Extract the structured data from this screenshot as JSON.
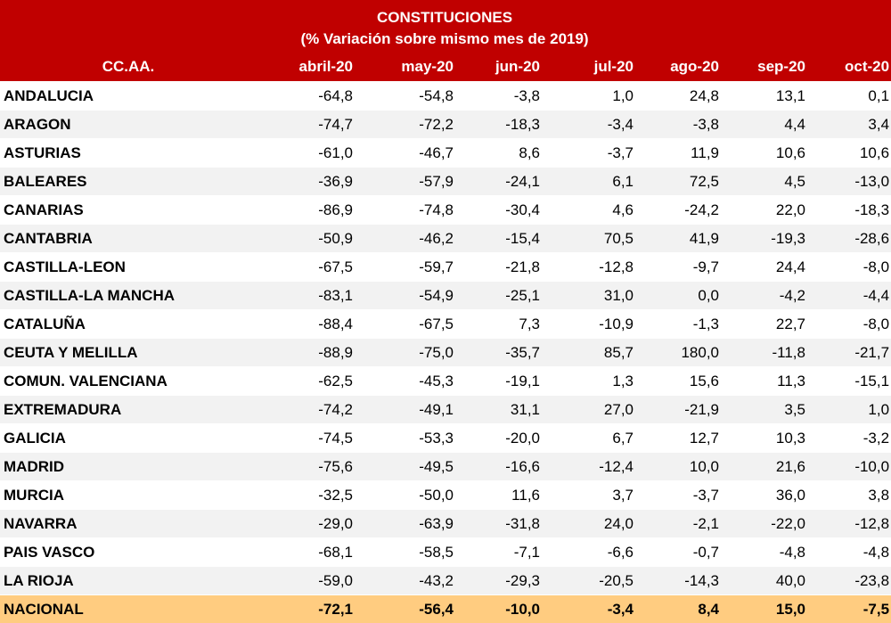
{
  "title": "CONSTITUCIONES",
  "subtitle": "(%  Variación sobre mismo mes de 2019)",
  "columns": [
    "CC.AA.",
    "abril-20",
    "may-20",
    "jun-20",
    "jul-20",
    "ago-20",
    "sep-20",
    "oct-20"
  ],
  "rows": [
    {
      "name": "ANDALUCIA",
      "values": [
        "-64,8",
        "-54,8",
        "-3,8",
        "1,0",
        "24,8",
        "13,1",
        "0,1"
      ]
    },
    {
      "name": "ARAGON",
      "values": [
        "-74,7",
        "-72,2",
        "-18,3",
        "-3,4",
        "-3,8",
        "4,4",
        "3,4"
      ]
    },
    {
      "name": "ASTURIAS",
      "values": [
        "-61,0",
        "-46,7",
        "8,6",
        "-3,7",
        "11,9",
        "10,6",
        "10,6"
      ]
    },
    {
      "name": "BALEARES",
      "values": [
        "-36,9",
        "-57,9",
        "-24,1",
        "6,1",
        "72,5",
        "4,5",
        "-13,0"
      ]
    },
    {
      "name": "CANARIAS",
      "values": [
        "-86,9",
        "-74,8",
        "-30,4",
        "4,6",
        "-24,2",
        "22,0",
        "-18,3"
      ]
    },
    {
      "name": "CANTABRIA",
      "values": [
        "-50,9",
        "-46,2",
        "-15,4",
        "70,5",
        "41,9",
        "-19,3",
        "-28,6"
      ]
    },
    {
      "name": "CASTILLA-LEON",
      "values": [
        "-67,5",
        "-59,7",
        "-21,8",
        "-12,8",
        "-9,7",
        "24,4",
        "-8,0"
      ]
    },
    {
      "name": "CASTILLA-LA MANCHA",
      "values": [
        "-83,1",
        "-54,9",
        "-25,1",
        "31,0",
        "0,0",
        "-4,2",
        "-4,4"
      ]
    },
    {
      "name": "CATALUÑA",
      "values": [
        "-88,4",
        "-67,5",
        "7,3",
        "-10,9",
        "-1,3",
        "22,7",
        "-8,0"
      ]
    },
    {
      "name": "CEUTA Y MELILLA",
      "values": [
        "-88,9",
        "-75,0",
        "-35,7",
        "85,7",
        "180,0",
        "-11,8",
        "-21,7"
      ]
    },
    {
      "name": "COMUN. VALENCIANA",
      "values": [
        "-62,5",
        "-45,3",
        "-19,1",
        "1,3",
        "15,6",
        "11,3",
        "-15,1"
      ]
    },
    {
      "name": "EXTREMADURA",
      "values": [
        "-74,2",
        "-49,1",
        "31,1",
        "27,0",
        "-21,9",
        "3,5",
        "1,0"
      ]
    },
    {
      "name": "GALICIA",
      "values": [
        "-74,5",
        "-53,3",
        "-20,0",
        "6,7",
        "12,7",
        "10,3",
        "-3,2"
      ]
    },
    {
      "name": "MADRID",
      "values": [
        "-75,6",
        "-49,5",
        "-16,6",
        "-12,4",
        "10,0",
        "21,6",
        "-10,0"
      ]
    },
    {
      "name": "MURCIA",
      "values": [
        "-32,5",
        "-50,0",
        "11,6",
        "3,7",
        "-3,7",
        "36,0",
        "3,8"
      ]
    },
    {
      "name": "NAVARRA",
      "values": [
        "-29,0",
        "-63,9",
        "-31,8",
        "24,0",
        "-2,1",
        "-22,0",
        "-12,8"
      ]
    },
    {
      "name": "PAIS VASCO",
      "values": [
        "-68,1",
        "-58,5",
        "-7,1",
        "-6,6",
        "-0,7",
        "-4,8",
        "-4,8"
      ]
    },
    {
      "name": "LA RIOJA",
      "values": [
        "-59,0",
        "-43,2",
        "-29,3",
        "-20,5",
        "-14,3",
        "40,0",
        "-23,8"
      ]
    }
  ],
  "total": {
    "name": "NACIONAL",
    "values": [
      "-72,1",
      "-56,4",
      "-10,0",
      "-3,4",
      "8,4",
      "15,0",
      "-7,5"
    ]
  },
  "colors": {
    "header_bg": "#C00000",
    "stripe": "#F2F2F2",
    "total_bg": "#FFCC80"
  }
}
